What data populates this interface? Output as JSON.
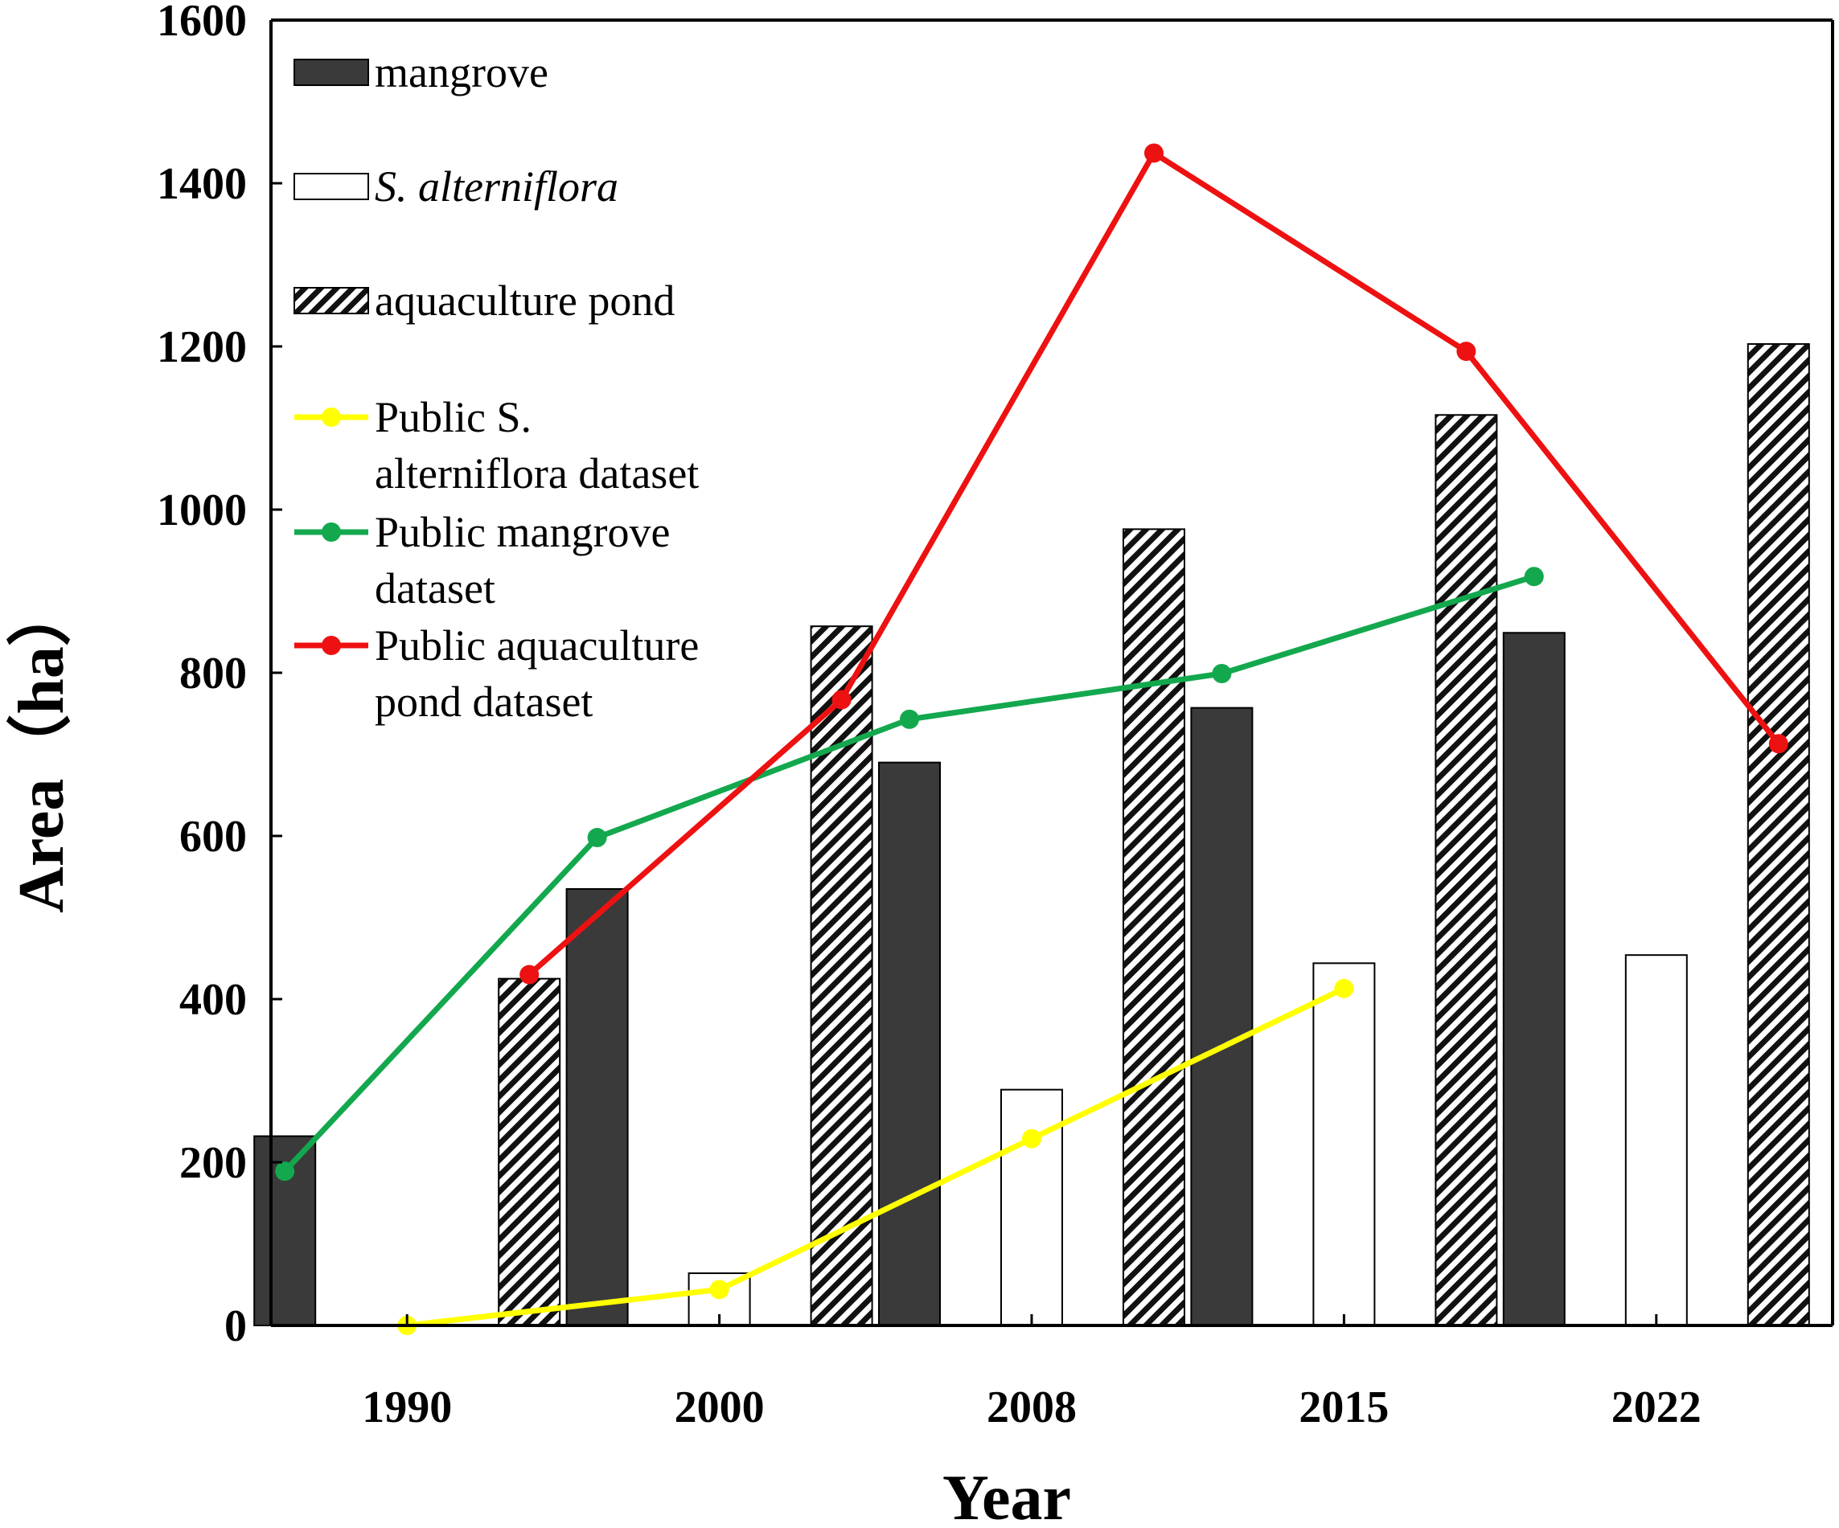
{
  "chart_data": {
    "type": "bar",
    "title": "",
    "xlabel": "Year",
    "ylabel": "Area（ha）",
    "ylim": [
      0,
      1600
    ],
    "yticks": [
      "0",
      "200",
      "400",
      "600",
      "800",
      "1000",
      "1200",
      "1400",
      "1600"
    ],
    "categories": [
      "1990",
      "2000",
      "2008",
      "2015",
      "2022"
    ],
    "bar_series": [
      {
        "name": "mangrove",
        "style": "solid",
        "color": "#3a3a3a",
        "values": [
          232,
          535,
          690,
          757,
          849
        ]
      },
      {
        "name": "S. alterniflora",
        "style": "hollow",
        "color": "#ffffff",
        "values": [
          0,
          64,
          289,
          444,
          454
        ]
      },
      {
        "name": "aquaculture pond",
        "style": "hatched",
        "color": "#000000",
        "values": [
          425,
          857,
          976,
          1116,
          1203
        ]
      }
    ],
    "line_series": [
      {
        "name": "Public S. alterniflora dataset",
        "name_lines": [
          "Public S.",
          "alterniflora dataset"
        ],
        "color": "#ffff00",
        "points": [
          {
            "category": "1990",
            "slot": 1,
            "value": 0
          },
          {
            "category": "2000",
            "slot": 1,
            "value": 44
          },
          {
            "category": "2008",
            "slot": 1,
            "value": 229
          },
          {
            "category": "2015",
            "slot": 1,
            "value": 413
          }
        ]
      },
      {
        "name": "Public mangrove dataset",
        "name_lines": [
          "Public mangrove",
          "dataset"
        ],
        "color": "#13a84e",
        "points": [
          {
            "category": "1990",
            "slot": 0,
            "value": 189
          },
          {
            "category": "2000",
            "slot": 0,
            "value": 598
          },
          {
            "category": "2008",
            "slot": 0,
            "value": 743
          },
          {
            "category": "2015",
            "slot": 0,
            "value": 799
          },
          {
            "category": "2022",
            "slot": 0,
            "value": 918
          }
        ]
      },
      {
        "name": "Public aquaculture pond dataset",
        "name_lines": [
          "Public aquaculture",
          "pond dataset"
        ],
        "color": "#ee1111",
        "points": [
          {
            "category": "1990",
            "slot": 2,
            "value": 430
          },
          {
            "category": "2000",
            "slot": 2,
            "value": 767
          },
          {
            "category": "2008",
            "slot": 2,
            "value": 1437
          },
          {
            "category": "2015",
            "slot": 2,
            "value": 1194
          },
          {
            "category": "2022",
            "slot": 2,
            "value": 713
          }
        ]
      }
    ],
    "legend_position": "top-left",
    "grid": false
  }
}
